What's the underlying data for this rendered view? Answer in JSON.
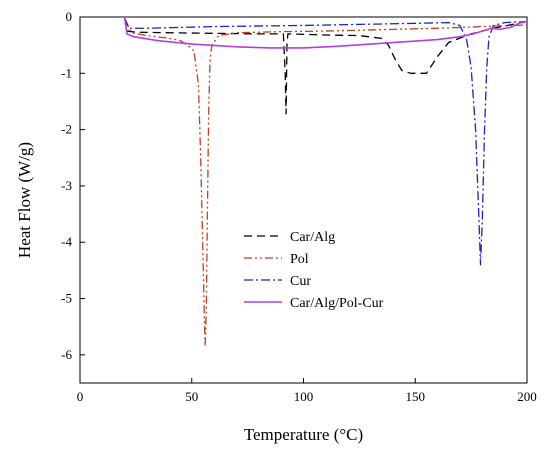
{
  "chart_data": {
    "type": "line",
    "title": "",
    "xlabel": "Temperature (°C)",
    "ylabel": "Heat Flow (W/g)",
    "xlim": [
      0,
      200
    ],
    "ylim": [
      -6.5,
      0
    ],
    "x_ticks": [
      0,
      50,
      100,
      150,
      200
    ],
    "y_ticks": [
      0,
      -1,
      -2,
      -3,
      -4,
      -5,
      -6
    ],
    "x_tick_labels": [
      "0",
      "50",
      "100",
      "150",
      "200"
    ],
    "y_tick_labels": [
      "0",
      "-1",
      "-2",
      "-3",
      "-4",
      "-5",
      "-6"
    ],
    "grid": false,
    "legend_position": "center",
    "series": [
      {
        "name": "Car/Alg",
        "color": "#000000",
        "dash": "dash",
        "points": [
          [
            20,
            -0.02
          ],
          [
            21,
            -0.25
          ],
          [
            25,
            -0.27
          ],
          [
            40,
            -0.28
          ],
          [
            60,
            -0.29
          ],
          [
            80,
            -0.3
          ],
          [
            91,
            -0.3
          ],
          [
            91.8,
            -1.0
          ],
          [
            92.2,
            -1.72
          ],
          [
            92.6,
            -0.5
          ],
          [
            93,
            -0.3
          ],
          [
            110,
            -0.32
          ],
          [
            125,
            -0.33
          ],
          [
            135,
            -0.38
          ],
          [
            138,
            -0.5
          ],
          [
            141,
            -0.75
          ],
          [
            144,
            -0.95
          ],
          [
            148,
            -1.0
          ],
          [
            155,
            -1.0
          ],
          [
            160,
            -0.7
          ],
          [
            165,
            -0.45
          ],
          [
            175,
            -0.3
          ],
          [
            185,
            -0.2
          ],
          [
            195,
            -0.12
          ],
          [
            200,
            -0.08
          ]
        ]
      },
      {
        "name": "Pol",
        "color": "#c0401a",
        "dash": "dashdotdot",
        "points": [
          [
            20,
            -0.05
          ],
          [
            23,
            -0.28
          ],
          [
            30,
            -0.33
          ],
          [
            40,
            -0.38
          ],
          [
            45,
            -0.42
          ],
          [
            48,
            -0.5
          ],
          [
            51,
            -0.6
          ],
          [
            53,
            -1.2
          ],
          [
            54,
            -2.5
          ],
          [
            55,
            -4.2
          ],
          [
            55.6,
            -5.3
          ],
          [
            56,
            -5.85
          ],
          [
            56.5,
            -5.2
          ],
          [
            57,
            -3.5
          ],
          [
            57.6,
            -1.6
          ],
          [
            58.2,
            -0.75
          ],
          [
            59,
            -0.5
          ],
          [
            62,
            -0.33
          ],
          [
            70,
            -0.28
          ],
          [
            90,
            -0.26
          ],
          [
            110,
            -0.25
          ],
          [
            130,
            -0.23
          ],
          [
            160,
            -0.2
          ],
          [
            180,
            -0.17
          ],
          [
            200,
            -0.14
          ]
        ]
      },
      {
        "name": "Cur",
        "color": "#1a22cc",
        "dash": "dashdot",
        "points": [
          [
            20,
            -0.02
          ],
          [
            22,
            -0.2
          ],
          [
            30,
            -0.2
          ],
          [
            60,
            -0.17
          ],
          [
            100,
            -0.15
          ],
          [
            140,
            -0.12
          ],
          [
            165,
            -0.1
          ],
          [
            170,
            -0.15
          ],
          [
            173,
            -0.4
          ],
          [
            175,
            -0.9
          ],
          [
            177,
            -2.0
          ],
          [
            178.5,
            -3.6
          ],
          [
            179.2,
            -4.4
          ],
          [
            180,
            -3.6
          ],
          [
            181,
            -2.0
          ],
          [
            182,
            -0.9
          ],
          [
            183,
            -0.35
          ],
          [
            185,
            -0.15
          ],
          [
            190,
            -0.1
          ],
          [
            200,
            -0.08
          ]
        ]
      },
      {
        "name": "Car/Alg/Pol-Cur",
        "color": "#b040e0",
        "dash": "solid",
        "points": [
          [
            20,
            -0.02
          ],
          [
            21,
            -0.3
          ],
          [
            24,
            -0.35
          ],
          [
            35,
            -0.42
          ],
          [
            50,
            -0.48
          ],
          [
            70,
            -0.53
          ],
          [
            85,
            -0.55
          ],
          [
            100,
            -0.55
          ],
          [
            115,
            -0.52
          ],
          [
            130,
            -0.48
          ],
          [
            145,
            -0.44
          ],
          [
            160,
            -0.4
          ],
          [
            170,
            -0.35
          ],
          [
            176,
            -0.3
          ],
          [
            180,
            -0.25
          ],
          [
            184,
            -0.2
          ],
          [
            188,
            -0.22
          ],
          [
            193,
            -0.18
          ],
          [
            197,
            -0.1
          ],
          [
            200,
            -0.08
          ]
        ]
      }
    ]
  }
}
